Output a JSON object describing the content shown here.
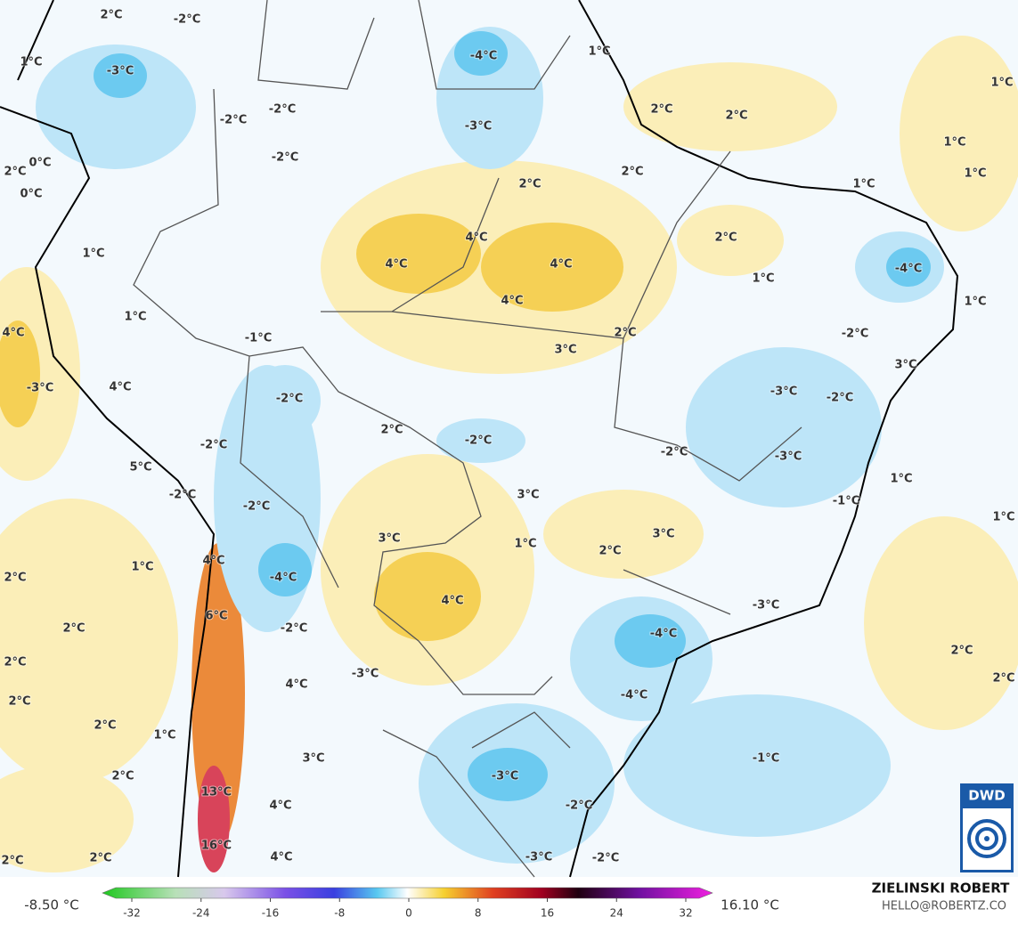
{
  "map": {
    "labels": [
      "2°C",
      "-2°C",
      "1°C",
      "-3°C",
      "-4°C",
      "1°C",
      "1°C",
      "2°C",
      "2°C",
      "-3°C",
      "-2°C",
      "-2°C",
      "1°C",
      "-2°C",
      "0°C",
      "2°C",
      "1°C",
      "2°C",
      "2°C",
      "1°C",
      "0°C",
      "4°C",
      "2°C",
      "4°C",
      "4°C",
      "-4°C",
      "1°C",
      "1°C",
      "4°C",
      "1°C",
      "1°C",
      "-1°C",
      "2°C",
      "4°C",
      "-2°C",
      "3°C",
      "3°C",
      "-3°C",
      "4°C",
      "-3°C",
      "-2°C",
      "-2°C",
      "2°C",
      "-2°C",
      "-2°C",
      "-2°C",
      "-3°C",
      "5°C",
      "1°C",
      "-2°C",
      "3°C",
      "-1°C",
      "-2°C",
      "1°C",
      "3°C",
      "1°C",
      "3°C",
      "2°C",
      "4°C",
      "1°C",
      "2°C",
      "-4°C",
      "4°C",
      "-3°C",
      "6°C",
      "2°C",
      "-2°C",
      "-4°C",
      "2°C",
      "2°C",
      "-3°C",
      "-4°C",
      "2°C",
      "4°C",
      "2°C",
      "2°C",
      "1°C",
      "3°C",
      "-1°C",
      "2°C",
      "-3°C",
      "13°C",
      "4°C",
      "-2°C",
      "16°C",
      "2°C",
      "2°C",
      "4°C",
      "-3°C",
      "-2°C"
    ],
    "colorbar": {
      "min_label": "-8.50 °C",
      "max_label": "16.10 °C",
      "ticks": [
        -32,
        -24,
        -16,
        -8,
        0,
        8,
        16,
        24,
        32
      ]
    },
    "author": "ZIELINSKI ROBERT",
    "contact": "HELLO@ROBERTZ.CO",
    "logo": "DWD"
  }
}
